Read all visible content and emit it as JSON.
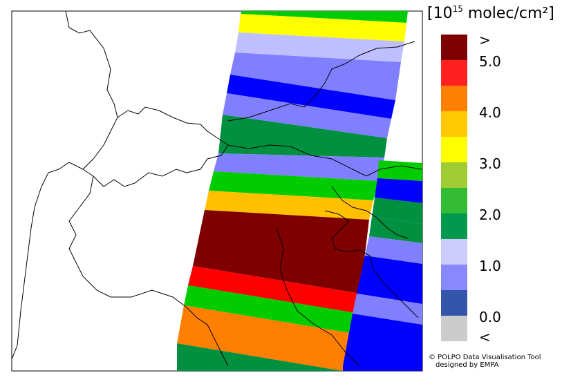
{
  "legend": {
    "unit_prefix": "[10",
    "unit_exponent": "15",
    "unit_suffix": " molec/cm²]",
    "top_marker": ">",
    "bottom_marker": "<",
    "labels": [
      "5.0",
      "4.0",
      "3.0",
      "2.0",
      "1.0",
      "0.0"
    ],
    "colors": [
      "#7f0000",
      "#ff2020",
      "#ff8000",
      "#ffc800",
      "#ffff00",
      "#9fcc33",
      "#33bb33",
      "#00994d",
      "#ccccff",
      "#8888ff",
      "#3355aa",
      "#cccccc"
    ]
  },
  "swath_colors": {
    "green": "#00cc00",
    "yellow": "#ffff00",
    "lavender": "#bfbfff",
    "periwinkle": "#8080ff",
    "blue": "#0000ff",
    "darkgreen": "#009040",
    "orange_yellow": "#ffc000",
    "dark_red": "#7f0000",
    "red": "#ff0000",
    "orange": "#ff8000"
  },
  "credit": {
    "line1": "© POLPO Data Visualisation Tool",
    "line2": "designed by EMPA"
  }
}
